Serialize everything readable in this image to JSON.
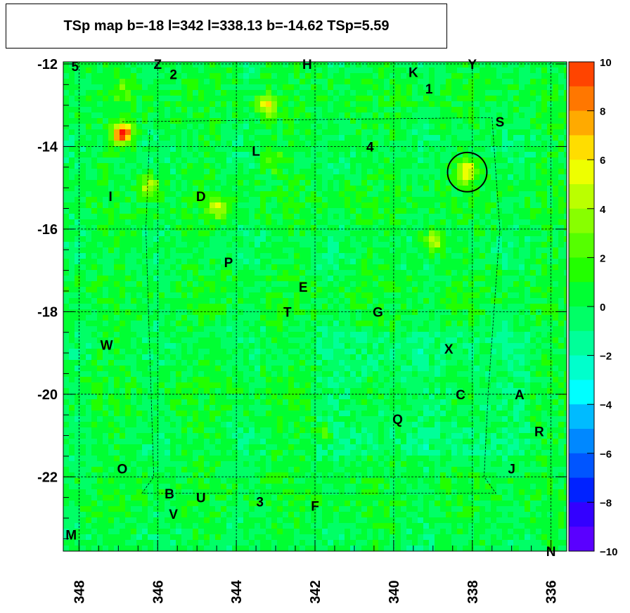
{
  "title": "TSp map b=-18 l=342 l=338.13 b=-14.62 TSp=5.59",
  "colors": {
    "background": "#00ff33",
    "frame": "#000000"
  },
  "chart_data": {
    "type": "heatmap",
    "title": "TSp map b=-18 l=342 l=338.13 b=-14.62 TSp=5.59",
    "xlabel": "",
    "ylabel": "",
    "xlim": [
      348.4,
      335.6
    ],
    "ylim": [
      -23.8,
      -11.95
    ],
    "x_ticks": [
      {
        "v": 348,
        "label": "348"
      },
      {
        "v": 346,
        "label": "346"
      },
      {
        "v": 344,
        "label": "344"
      },
      {
        "v": 342,
        "label": "342"
      },
      {
        "v": 340,
        "label": "340"
      },
      {
        "v": 338,
        "label": "338"
      },
      {
        "v": 336,
        "label": "336"
      }
    ],
    "y_ticks": [
      {
        "v": -12,
        "label": "-12"
      },
      {
        "v": -14,
        "label": "-14"
      },
      {
        "v": -16,
        "label": "-16"
      },
      {
        "v": -18,
        "label": "-18"
      },
      {
        "v": -20,
        "label": "-20"
      },
      {
        "v": -22,
        "label": "-22"
      }
    ],
    "z_range": [
      -10,
      10
    ],
    "z_ticks": [
      {
        "v": 10,
        "label": "10"
      },
      {
        "v": 8,
        "label": "8"
      },
      {
        "v": 6,
        "label": "6"
      },
      {
        "v": 4,
        "label": "4"
      },
      {
        "v": 2,
        "label": "2"
      },
      {
        "v": 0,
        "label": "0"
      },
      {
        "v": -2,
        "label": "−2"
      },
      {
        "v": -4,
        "label": "−4"
      },
      {
        "v": -6,
        "label": "−6"
      },
      {
        "v": -8,
        "label": "−8"
      },
      {
        "v": -10,
        "label": "−10"
      }
    ],
    "palette": [
      "#7f00ff",
      "#5a00ff",
      "#3300ff",
      "#0022ff",
      "#0055ff",
      "#0088ff",
      "#00bbff",
      "#00ffff",
      "#00ffcc",
      "#00ff99",
      "#00ff66",
      "#00ff33",
      "#22ff00",
      "#55ff00",
      "#88ff00",
      "#bbff00",
      "#eeff00",
      "#ffdd00",
      "#ffaa00",
      "#ff7700",
      "#ff4400",
      "#ff1100"
    ],
    "hotspots": [
      {
        "l": 346.9,
        "b": -13.7,
        "z": 10
      },
      {
        "l": 338.1,
        "b": -14.6,
        "z": 5.59
      },
      {
        "l": 343.2,
        "b": -13.0,
        "z": 5
      },
      {
        "l": 339.0,
        "b": -16.3,
        "z": 5
      },
      {
        "l": 346.2,
        "b": -15.0,
        "z": 4
      },
      {
        "l": 344.5,
        "b": -15.5,
        "z": 4
      },
      {
        "l": 343.1,
        "b": -14.3,
        "z": 3
      },
      {
        "l": 341.8,
        "b": -21.0,
        "z": 2.5
      },
      {
        "l": 346.8,
        "b": -12.6,
        "z": 2
      }
    ],
    "marker_circle": {
      "l": 338.13,
      "b": -14.62,
      "r_deg": 0.5
    },
    "sources": [
      {
        "name": "5",
        "l": 348.1,
        "b": -12.05
      },
      {
        "name": "Z",
        "l": 346.0,
        "b": -12.0
      },
      {
        "name": "2",
        "l": 345.6,
        "b": -12.25
      },
      {
        "name": "H",
        "l": 342.2,
        "b": -12.0
      },
      {
        "name": "K",
        "l": 339.5,
        "b": -12.2
      },
      {
        "name": "Y",
        "l": 338.0,
        "b": -12.0
      },
      {
        "name": "1",
        "l": 339.1,
        "b": -12.6
      },
      {
        "name": "S",
        "l": 337.3,
        "b": -13.4
      },
      {
        "name": "L",
        "l": 343.5,
        "b": -14.1
      },
      {
        "name": "4",
        "l": 340.6,
        "b": -14.0
      },
      {
        "name": "I",
        "l": 347.2,
        "b": -15.2
      },
      {
        "name": "D",
        "l": 344.9,
        "b": -15.2
      },
      {
        "name": "P",
        "l": 344.2,
        "b": -16.8
      },
      {
        "name": "E",
        "l": 342.3,
        "b": -17.4
      },
      {
        "name": "T",
        "l": 342.7,
        "b": -18.0
      },
      {
        "name": "G",
        "l": 340.4,
        "b": -18.0
      },
      {
        "name": "W",
        "l": 347.3,
        "b": -18.8
      },
      {
        "name": "X",
        "l": 338.6,
        "b": -18.9
      },
      {
        "name": "C",
        "l": 338.3,
        "b": -20.0
      },
      {
        "name": "A",
        "l": 336.8,
        "b": -20.0
      },
      {
        "name": "Q",
        "l": 339.9,
        "b": -20.6
      },
      {
        "name": "R",
        "l": 336.3,
        "b": -20.9
      },
      {
        "name": "O",
        "l": 346.9,
        "b": -21.8
      },
      {
        "name": "J",
        "l": 337.0,
        "b": -21.8
      },
      {
        "name": "B",
        "l": 345.7,
        "b": -22.4
      },
      {
        "name": "U",
        "l": 344.9,
        "b": -22.5
      },
      {
        "name": "3",
        "l": 343.4,
        "b": -22.6
      },
      {
        "name": "F",
        "l": 342.0,
        "b": -22.7
      },
      {
        "name": "V",
        "l": 345.6,
        "b": -22.9
      },
      {
        "name": "M",
        "l": 348.2,
        "b": -23.4
      },
      {
        "name": "N",
        "l": 336.0,
        "b": -23.8
      }
    ]
  }
}
